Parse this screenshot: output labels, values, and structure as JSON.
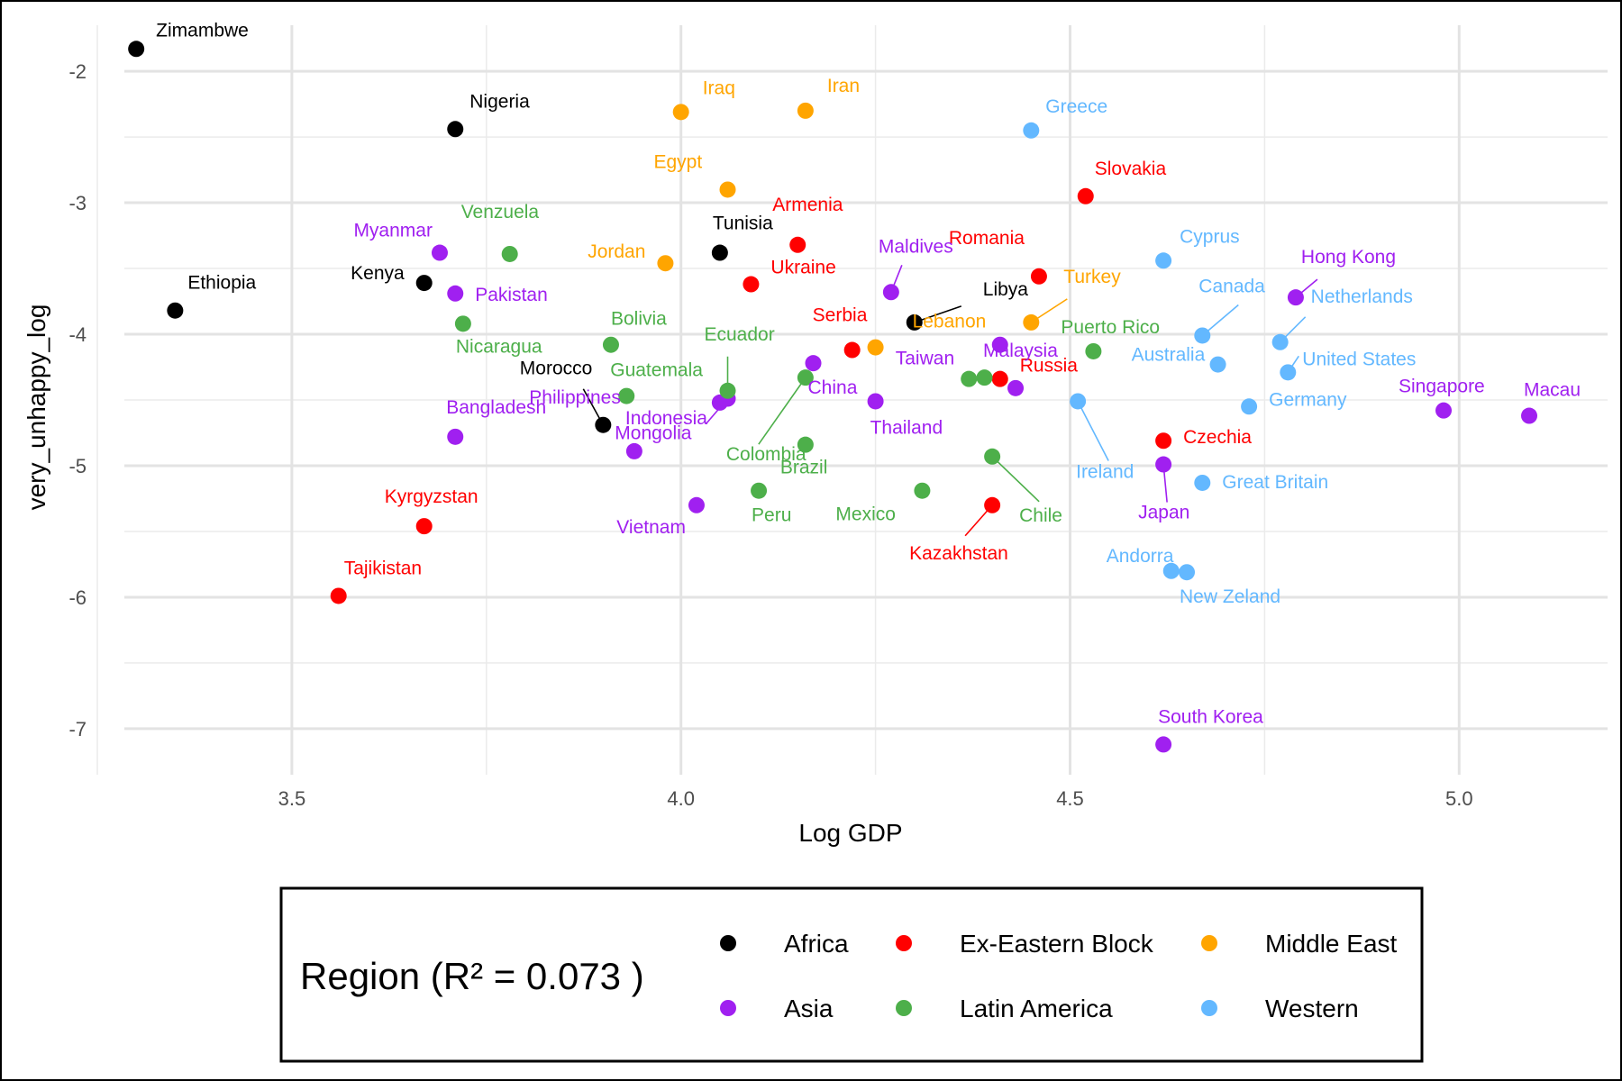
{
  "chart_data": {
    "type": "scatter",
    "xlabel": "Log GDP",
    "ylabel": "very_unhappy_log",
    "xlim": [
      3.25,
      5.2
    ],
    "ylim": [
      -7.35,
      -1.65
    ],
    "x_ticks": [
      {
        "v": 3.5,
        "label": "3.5"
      },
      {
        "v": 4.0,
        "label": "4.0"
      },
      {
        "v": 4.5,
        "label": "4.5"
      },
      {
        "v": 5.0,
        "label": "5.0"
      }
    ],
    "y_ticks": [
      {
        "v": -2,
        "label": "-2"
      },
      {
        "v": -3,
        "label": "-3"
      },
      {
        "v": -4,
        "label": "-4"
      },
      {
        "v": -5,
        "label": "-5"
      },
      {
        "v": -6,
        "label": "-6"
      },
      {
        "v": -7,
        "label": "-7"
      }
    ],
    "grid": true,
    "legend": {
      "title": "Region (R² = 0.073 )",
      "placement": "bottom",
      "entries": [
        {
          "name": "Africa",
          "color": "#000000"
        },
        {
          "name": "Ex-Eastern Block",
          "color": "#ff0000"
        },
        {
          "name": "Middle East",
          "color": "#ffa500"
        },
        {
          "name": "Asia",
          "color": "#a020f0"
        },
        {
          "name": "Latin America",
          "color": "#4daf4a"
        },
        {
          "name": "Western",
          "color": "#63b8ff"
        }
      ]
    },
    "points": [
      {
        "country": "Zimambwe",
        "region": "Africa",
        "x": 3.3,
        "y": -1.83
      },
      {
        "country": "Ethiopia",
        "region": "Africa",
        "x": 3.35,
        "y": -3.82
      },
      {
        "country": "Nigeria",
        "region": "Africa",
        "x": 3.71,
        "y": -2.44
      },
      {
        "country": "Kenya",
        "region": "Africa",
        "x": 3.67,
        "y": -3.61
      },
      {
        "country": "Tunisia",
        "region": "Africa",
        "x": 4.05,
        "y": -3.38
      },
      {
        "country": "Morocco",
        "region": "Africa",
        "x": 3.9,
        "y": -4.69
      },
      {
        "country": "Libya",
        "region": "Africa",
        "x": 4.3,
        "y": -3.91
      },
      {
        "country": "Tajikistan",
        "region": "Ex-Eastern Block",
        "x": 3.56,
        "y": -5.99
      },
      {
        "country": "Kyrgyzstan",
        "region": "Ex-Eastern Block",
        "x": 3.67,
        "y": -5.46
      },
      {
        "country": "Armenia",
        "region": "Ex-Eastern Block",
        "x": 4.15,
        "y": -3.32
      },
      {
        "country": "Ukraine",
        "region": "Ex-Eastern Block",
        "x": 4.09,
        "y": -3.62
      },
      {
        "country": "Serbia",
        "region": "Ex-Eastern Block",
        "x": 4.22,
        "y": -4.12
      },
      {
        "country": "Romania",
        "region": "Ex-Eastern Block",
        "x": 4.46,
        "y": -3.56
      },
      {
        "country": "Slovakia",
        "region": "Ex-Eastern Block",
        "x": 4.52,
        "y": -2.95
      },
      {
        "country": "Russia",
        "region": "Ex-Eastern Block",
        "x": 4.41,
        "y": -4.34
      },
      {
        "country": "Kazakhstan",
        "region": "Ex-Eastern Block",
        "x": 4.4,
        "y": -5.3
      },
      {
        "country": "Czechia",
        "region": "Ex-Eastern Block",
        "x": 4.62,
        "y": -4.81
      },
      {
        "country": "Iraq",
        "region": "Middle East",
        "x": 4.0,
        "y": -2.31
      },
      {
        "country": "Iran",
        "region": "Middle East",
        "x": 4.16,
        "y": -2.3
      },
      {
        "country": "Egypt",
        "region": "Middle East",
        "x": 4.06,
        "y": -2.9
      },
      {
        "country": "Jordan",
        "region": "Middle East",
        "x": 3.98,
        "y": -3.46
      },
      {
        "country": "Lebanon",
        "region": "Middle East",
        "x": 4.25,
        "y": -4.1
      },
      {
        "country": "Turkey",
        "region": "Middle East",
        "x": 4.45,
        "y": -3.91
      },
      {
        "country": "Myanmar",
        "region": "Asia",
        "x": 3.69,
        "y": -3.38
      },
      {
        "country": "Pakistan",
        "region": "Asia",
        "x": 3.71,
        "y": -3.69
      },
      {
        "country": "Bangladesh",
        "region": "Asia",
        "x": 3.71,
        "y": -4.78
      },
      {
        "country": "Indonesia",
        "region": "Asia",
        "x": 3.94,
        "y": -4.89
      },
      {
        "country": "Philippines",
        "region": "Asia",
        "x": 4.05,
        "y": -4.52
      },
      {
        "country": "Mongolia",
        "region": "Asia",
        "x": 4.06,
        "y": -4.49
      },
      {
        "country": "Vietnam",
        "region": "Asia",
        "x": 4.02,
        "y": -5.3
      },
      {
        "country": "China",
        "region": "Asia",
        "x": 4.17,
        "y": -4.22
      },
      {
        "country": "Thailand",
        "region": "Asia",
        "x": 4.25,
        "y": -4.51
      },
      {
        "country": "Maldives",
        "region": "Asia",
        "x": 4.27,
        "y": -3.68
      },
      {
        "country": "Taiwan",
        "region": "Asia",
        "x": 4.41,
        "y": -4.08
      },
      {
        "country": "Malaysia",
        "region": "Asia",
        "x": 4.43,
        "y": -4.41
      },
      {
        "country": "Japan",
        "region": "Asia",
        "x": 4.62,
        "y": -4.99
      },
      {
        "country": "South Korea",
        "region": "Asia",
        "x": 4.62,
        "y": -7.12
      },
      {
        "country": "Hong Kong",
        "region": "Asia",
        "x": 4.79,
        "y": -3.72
      },
      {
        "country": "Singapore",
        "region": "Asia",
        "x": 4.98,
        "y": -4.58
      },
      {
        "country": "Macau",
        "region": "Asia",
        "x": 5.09,
        "y": -4.62
      },
      {
        "country": "Venzuela",
        "region": "Latin America",
        "x": 3.78,
        "y": -3.39
      },
      {
        "country": "Nicaragua",
        "region": "Latin America",
        "x": 3.72,
        "y": -3.92
      },
      {
        "country": "Bolivia",
        "region": "Latin America",
        "x": 3.91,
        "y": -4.08
      },
      {
        "country": "Guatemala",
        "region": "Latin America",
        "x": 3.93,
        "y": -4.47
      },
      {
        "country": "Ecuador",
        "region": "Latin America",
        "x": 4.06,
        "y": -4.43
      },
      {
        "country": "Colombia",
        "region": "Latin America",
        "x": 4.16,
        "y": -4.33
      },
      {
        "country": "Brazil",
        "region": "Latin America",
        "x": 4.16,
        "y": -4.84
      },
      {
        "country": "Peru",
        "region": "Latin America",
        "x": 4.1,
        "y": -5.19
      },
      {
        "country": "Mexico",
        "region": "Latin America",
        "x": 4.31,
        "y": -5.19
      },
      {
        "country": "Chile",
        "region": "Latin America",
        "x": 4.4,
        "y": -4.93
      },
      {
        "country": "Puerto Rico",
        "region": "Latin America",
        "x": 4.53,
        "y": -4.13
      },
      {
        "country": "",
        "region": "Latin America",
        "x": 4.37,
        "y": -4.34
      },
      {
        "country": "",
        "region": "Latin America",
        "x": 4.39,
        "y": -4.33
      },
      {
        "country": "Greece",
        "region": "Western",
        "x": 4.45,
        "y": -2.45
      },
      {
        "country": "Cyprus",
        "region": "Western",
        "x": 4.62,
        "y": -3.44
      },
      {
        "country": "Canada",
        "region": "Western",
        "x": 4.67,
        "y": -4.01
      },
      {
        "country": "Netherlands",
        "region": "Western",
        "x": 4.77,
        "y": -4.06
      },
      {
        "country": "United States",
        "region": "Western",
        "x": 4.78,
        "y": -4.29
      },
      {
        "country": "Australia",
        "region": "Western",
        "x": 4.69,
        "y": -4.23
      },
      {
        "country": "Germany",
        "region": "Western",
        "x": 4.73,
        "y": -4.55
      },
      {
        "country": "Ireland",
        "region": "Western",
        "x": 4.51,
        "y": -4.51
      },
      {
        "country": "Great Britain",
        "region": "Western",
        "x": 4.67,
        "y": -5.13
      },
      {
        "country": "Andorra",
        "region": "Western",
        "x": 4.63,
        "y": -5.8
      },
      {
        "country": "New Zeland",
        "region": "Western",
        "x": 4.65,
        "y": -5.81
      }
    ]
  }
}
